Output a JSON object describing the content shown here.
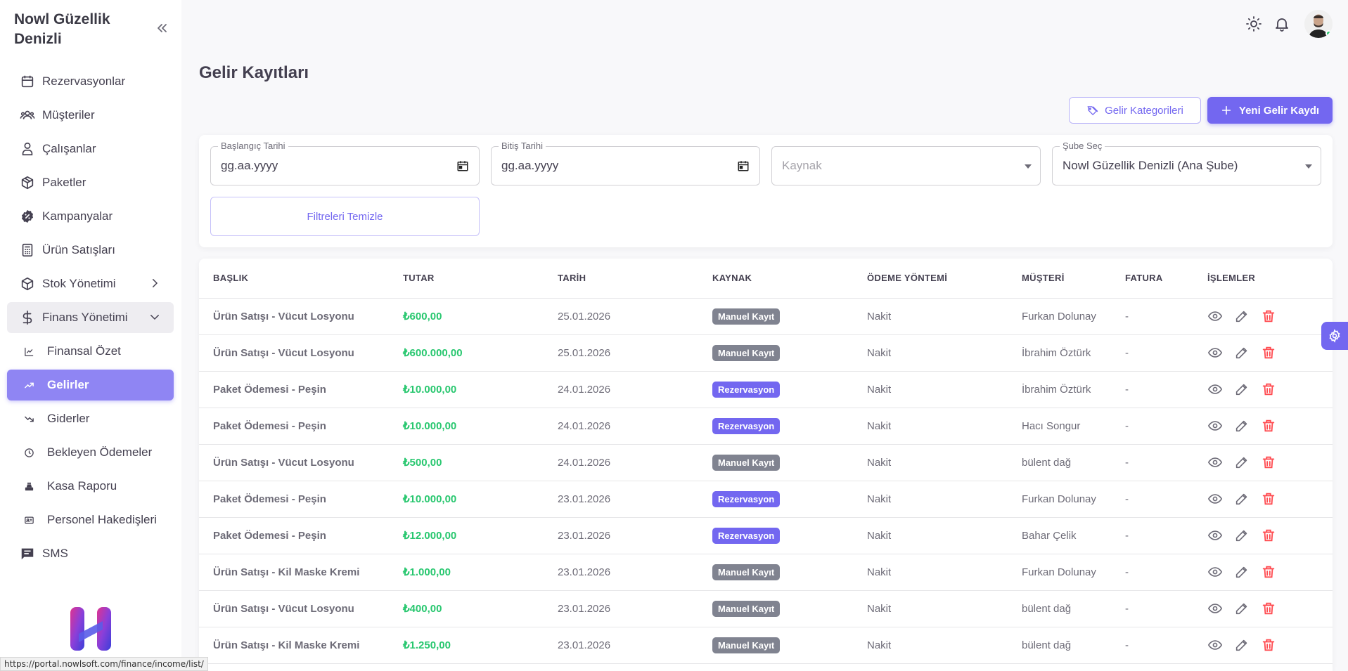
{
  "sidebar": {
    "brand": "Nowl Güzellik Denizli",
    "items": [
      {
        "label": "Rezervasyonlar"
      },
      {
        "label": "Müşteriler"
      },
      {
        "label": "Çalışanlar"
      },
      {
        "label": "Paketler"
      },
      {
        "label": "Kampanyalar"
      },
      {
        "label": "Ürün Satışları"
      },
      {
        "label": "Stok Yönetimi"
      },
      {
        "label": "Finans Yönetimi"
      },
      {
        "label": "Finansal Özet"
      },
      {
        "label": "Gelirler"
      },
      {
        "label": "Giderler"
      },
      {
        "label": "Bekleyen Ödemeler"
      },
      {
        "label": "Kasa Raporu"
      },
      {
        "label": "Personel Hakedişleri"
      },
      {
        "label": "SMS"
      }
    ]
  },
  "page": {
    "title": "Gelir Kayıtları",
    "btn_categories": "Gelir Kategorileri",
    "btn_new": "Yeni Gelir Kaydı"
  },
  "filters": {
    "start_label": "Başlangıç Tarihi",
    "start_value": "gg.aa.yyyy",
    "end_label": "Bitiş Tarihi",
    "end_value": "gg.aa.yyyy",
    "source_placeholder": "Kaynak",
    "branch_label": "Şube Seç",
    "branch_value": "Nowl Güzellik Denizli (Ana Şube)",
    "clear_label": "Filtreleri Temizle"
  },
  "table": {
    "headers": [
      "BAŞLIK",
      "TUTAR",
      "TARİH",
      "KAYNAK",
      "ÖDEME YÖNTEMİ",
      "MÜŞTERİ",
      "FATURA",
      "İŞLEMLER"
    ],
    "rows": [
      {
        "title": "Ürün Satışı - Vücut Losyonu",
        "amount": "₺600,00",
        "date": "25.01.2026",
        "source": "Manuel Kayıt",
        "payment": "Nakit",
        "customer": "Furkan Dolunay",
        "invoice": "-"
      },
      {
        "title": "Ürün Satışı - Vücut Losyonu",
        "amount": "₺600.000,00",
        "date": "25.01.2026",
        "source": "Manuel Kayıt",
        "payment": "Nakit",
        "customer": "İbrahim Öztürk",
        "invoice": "-"
      },
      {
        "title": "Paket Ödemesi - Peşin",
        "amount": "₺10.000,00",
        "date": "24.01.2026",
        "source": "Rezervasyon",
        "payment": "Nakit",
        "customer": "İbrahim Öztürk",
        "invoice": "-"
      },
      {
        "title": "Paket Ödemesi - Peşin",
        "amount": "₺10.000,00",
        "date": "24.01.2026",
        "source": "Rezervasyon",
        "payment": "Nakit",
        "customer": "Hacı Songur",
        "invoice": "-"
      },
      {
        "title": "Ürün Satışı - Vücut Losyonu",
        "amount": "₺500,00",
        "date": "24.01.2026",
        "source": "Manuel Kayıt",
        "payment": "Nakit",
        "customer": "bülent dağ",
        "invoice": "-"
      },
      {
        "title": "Paket Ödemesi - Peşin",
        "amount": "₺10.000,00",
        "date": "23.01.2026",
        "source": "Rezervasyon",
        "payment": "Nakit",
        "customer": "Furkan Dolunay",
        "invoice": "-"
      },
      {
        "title": "Paket Ödemesi - Peşin",
        "amount": "₺12.000,00",
        "date": "23.01.2026",
        "source": "Rezervasyon",
        "payment": "Nakit",
        "customer": "Bahar Çelik",
        "invoice": "-"
      },
      {
        "title": "Ürün Satışı - Kil Maske Kremi",
        "amount": "₺1.000,00",
        "date": "23.01.2026",
        "source": "Manuel Kayıt",
        "payment": "Nakit",
        "customer": "Furkan Dolunay",
        "invoice": "-"
      },
      {
        "title": "Ürün Satışı - Vücut Losyonu",
        "amount": "₺400,00",
        "date": "23.01.2026",
        "source": "Manuel Kayıt",
        "payment": "Nakit",
        "customer": "bülent dağ",
        "invoice": "-"
      },
      {
        "title": "Ürün Satışı - Kil Maske Kremi",
        "amount": "₺1.250,00",
        "date": "23.01.2026",
        "source": "Manuel Kayıt",
        "payment": "Nakit",
        "customer": "bülent dağ",
        "invoice": "-"
      }
    ]
  },
  "status_bar": {
    "url": "https://portal.nowlsoft.com/finance/income/list/"
  },
  "colors": {
    "accent": "#7367f0",
    "active_nav": "#8f85f3",
    "amount_green": "#28c76f",
    "badge_gray": "#808390",
    "delete_red": "#ff4c51"
  },
  "icons": {
    "header": [
      "sun-icon",
      "bell-icon"
    ],
    "row_actions": [
      "eye-icon",
      "pencil-icon",
      "trash-icon"
    ]
  }
}
